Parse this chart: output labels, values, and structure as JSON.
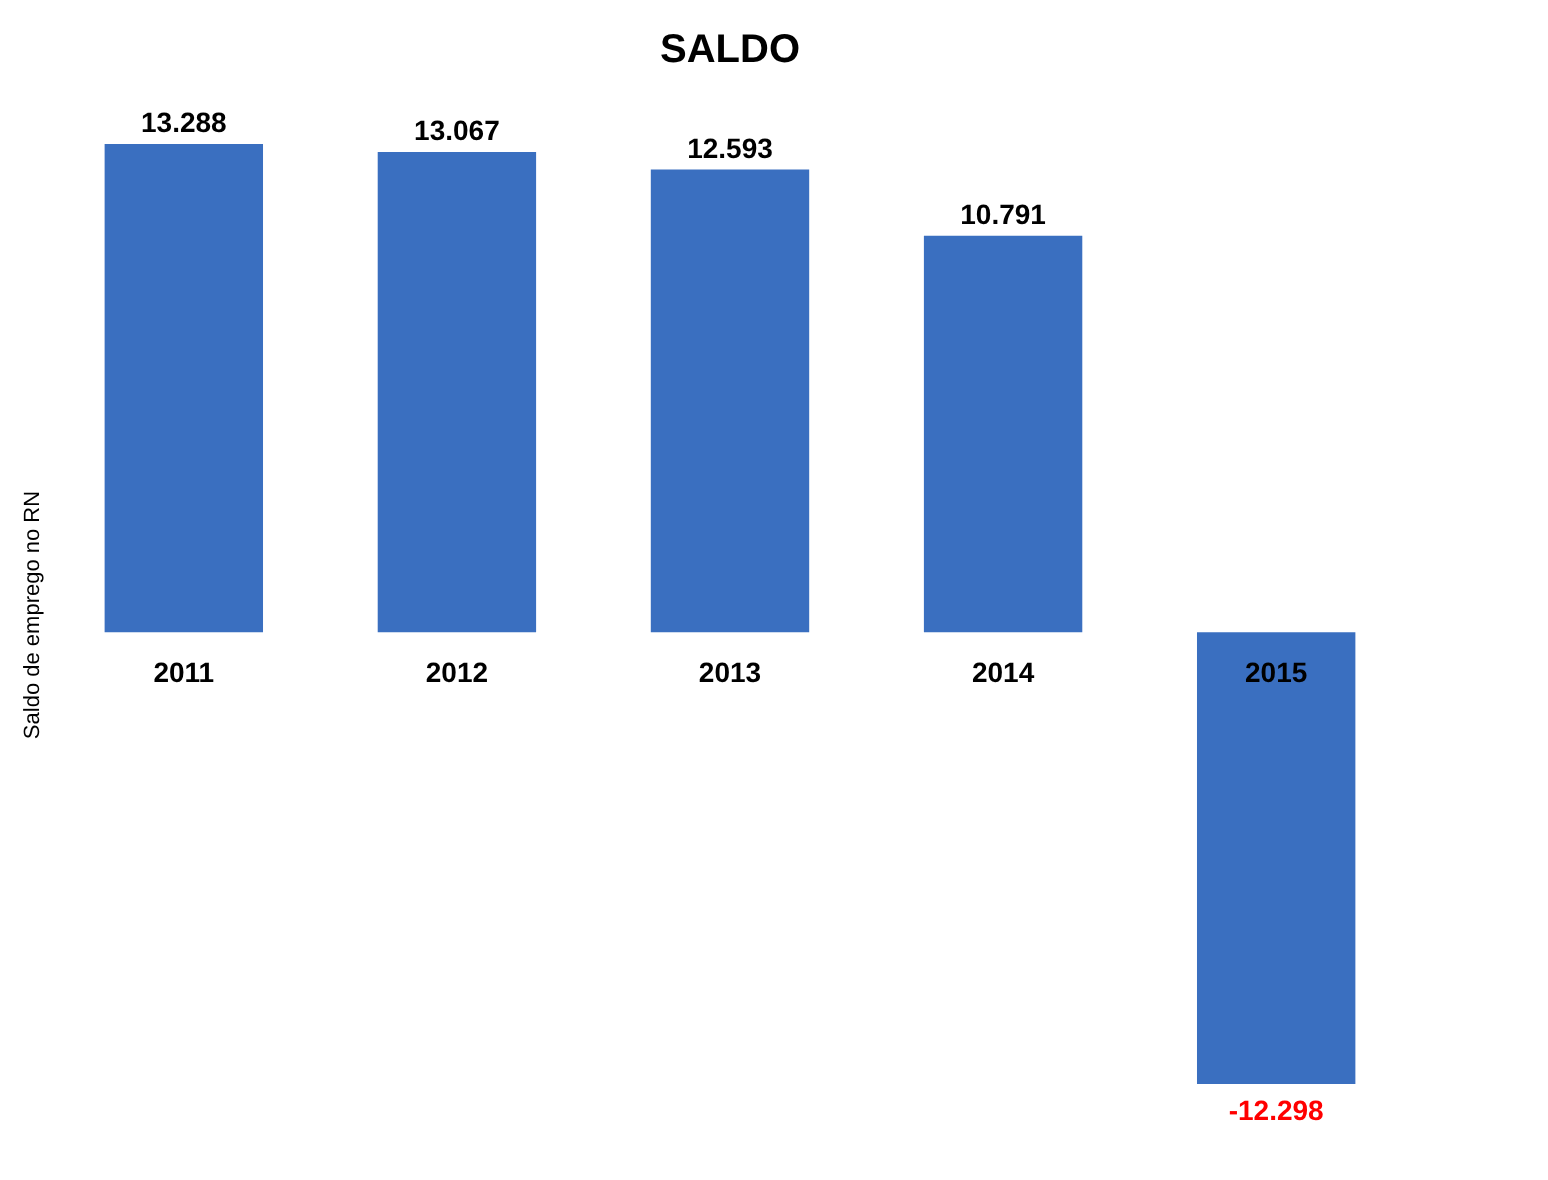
{
  "chart_data": {
    "type": "bar",
    "title": "SALDO",
    "ylabel": "Saldo de emprego no RN",
    "categories": [
      "2011",
      "2012",
      "2013",
      "2014",
      "2015"
    ],
    "values": [
      13288,
      13067,
      12593,
      10791,
      -12298
    ],
    "value_labels": [
      "13.288",
      "13.067",
      "12.593",
      "10.791",
      "-12.298"
    ],
    "color": "#3a6fc0",
    "tick_labels": "x"
  }
}
